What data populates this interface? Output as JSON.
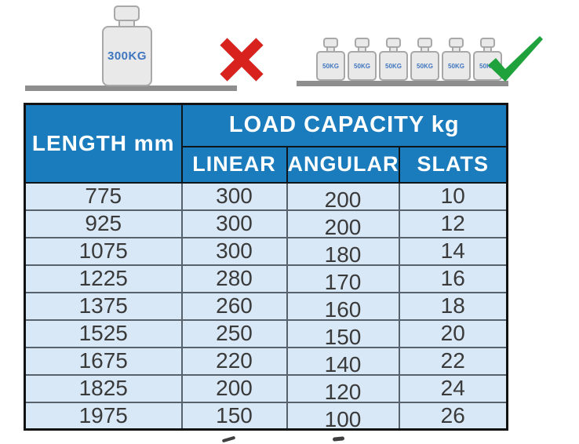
{
  "illustration": {
    "incorrect": {
      "weight_label": "300KG",
      "icon": "cross-icon",
      "meaning": "single 300KG weight not allowed"
    },
    "correct": {
      "weight_labels": [
        "50KG",
        "50KG",
        "50KG",
        "50KG",
        "50KG",
        "50KG"
      ],
      "icon": "check-icon",
      "meaning": "six distributed 50KG weights allowed"
    },
    "colors": {
      "cross": "#d7221e",
      "check": "#1fa23c",
      "weight_fill": "#e9e9e9",
      "weight_border": "#a8a8a8",
      "weight_text": "#3f76bf",
      "shelf": "#8e8e8e"
    }
  },
  "table": {
    "header": {
      "length": "LENGTH mm",
      "load_capacity": "LOAD CAPACITY kg",
      "sub": [
        "LINEAR",
        "ANGULAR",
        "SLATS"
      ]
    },
    "rows": [
      {
        "length": "775",
        "linear": "300",
        "angular": "200",
        "slats": "10"
      },
      {
        "length": "925",
        "linear": "300",
        "angular": "200",
        "slats": "12"
      },
      {
        "length": "1075",
        "linear": "300",
        "angular": "180",
        "slats": "14"
      },
      {
        "length": "1225",
        "linear": "280",
        "angular": "170",
        "slats": "16"
      },
      {
        "length": "1375",
        "linear": "260",
        "angular": "160",
        "slats": "18"
      },
      {
        "length": "1525",
        "linear": "250",
        "angular": "150",
        "slats": "20"
      },
      {
        "length": "1675",
        "linear": "220",
        "angular": "140",
        "slats": "22"
      },
      {
        "length": "1825",
        "linear": "200",
        "angular": "120",
        "slats": "24"
      },
      {
        "length": "1975",
        "linear": "150",
        "angular": "100",
        "slats": "26"
      }
    ],
    "colors": {
      "header_bg": "#1a7cbd",
      "header_text": "#ffffff",
      "row_bg": "#d8e8f6",
      "row_text": "#3a3a3a"
    }
  }
}
